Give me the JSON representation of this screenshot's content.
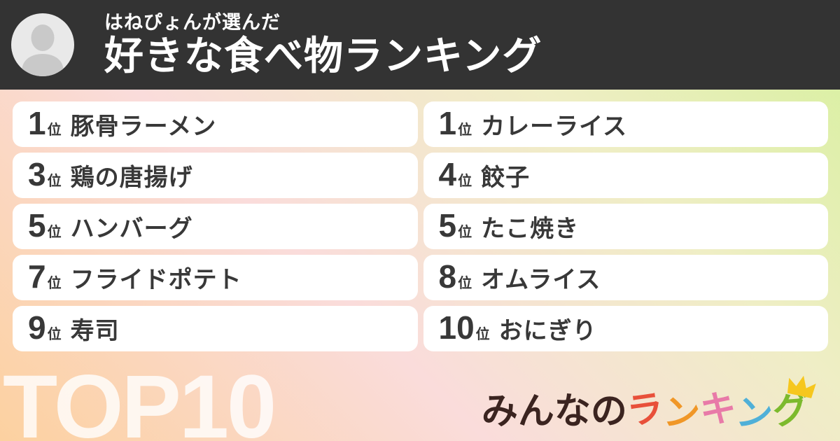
{
  "header": {
    "attribution": "はねぴょんが選んだ",
    "title": "好きな食べ物ランキング"
  },
  "ranking": {
    "rank_suffix": "位",
    "items": [
      {
        "rank": "1",
        "name": "豚骨ラーメン"
      },
      {
        "rank": "1",
        "name": "カレーライス"
      },
      {
        "rank": "3",
        "name": "鶏の唐揚げ"
      },
      {
        "rank": "4",
        "name": "餃子"
      },
      {
        "rank": "5",
        "name": "ハンバーグ"
      },
      {
        "rank": "5",
        "name": "たこ焼き"
      },
      {
        "rank": "7",
        "name": "フライドポテト"
      },
      {
        "rank": "8",
        "name": "オムライス"
      },
      {
        "rank": "9",
        "name": "寿司"
      },
      {
        "rank": "10",
        "name": "おにぎり"
      }
    ]
  },
  "footer": {
    "badge": "TOP10",
    "logo": {
      "text": "みんなのランキング",
      "chars": [
        {
          "ch": "み",
          "color": "#3b2420"
        },
        {
          "ch": "ん",
          "color": "#3b2420"
        },
        {
          "ch": "な",
          "color": "#3b2420"
        },
        {
          "ch": "の",
          "color": "#3b2420"
        },
        {
          "ch": "ラ",
          "color": "#e8503a"
        },
        {
          "ch": "ン",
          "color": "#f09727"
        },
        {
          "ch": "キ",
          "color": "#e87aa8"
        },
        {
          "ch": "ン",
          "color": "#4fb0d8"
        },
        {
          "ch": "グ",
          "color": "#7cba2d"
        }
      ],
      "crown_color": "#f6c71e"
    }
  },
  "colors": {
    "header_bg": "#333333",
    "background_gradient": [
      "#d6f09c",
      "#efeec5",
      "#fadcdb",
      "#fcd1a0"
    ],
    "card_bg": "#ffffff",
    "card_text": "#383838",
    "header_text": "#ffffff",
    "badge_text": "#ffffff",
    "avatar_bg": "#e9e9e9",
    "avatar_silhouette": "#c9c9c9"
  }
}
